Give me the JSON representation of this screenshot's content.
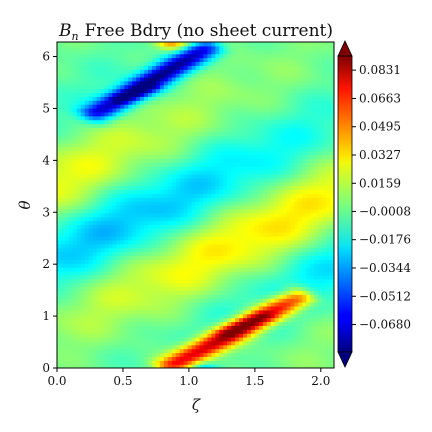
{
  "chart_data": {
    "type": "heatmap",
    "title": "Free Bdry (no sheet current)",
    "title_symbol": "B",
    "title_symbol_sub": "n",
    "xlabel": "ζ",
    "ylabel": "θ",
    "xlim": [
      0,
      2.1
    ],
    "ylim": [
      0,
      6.28
    ],
    "x_ticks": [
      "0.0",
      "0.5",
      "1.0",
      "1.5",
      "2.0"
    ],
    "x_tick_values": [
      0.0,
      0.5,
      1.0,
      1.5,
      2.0
    ],
    "y_ticks": [
      "0",
      "1",
      "2",
      "3",
      "4",
      "5",
      "6"
    ],
    "y_tick_values": [
      0,
      1,
      2,
      3,
      4,
      5,
      6
    ],
    "colormap": "jet",
    "colorbar_ticks": [
      "0.0831",
      "0.0663",
      "0.0495",
      "0.0327",
      "0.0159",
      "−0.0008",
      "−0.0176",
      "−0.0344",
      "−0.0512",
      "−0.0680"
    ],
    "colorbar_tick_values": [
      0.0831,
      0.0663,
      0.0495,
      0.0327,
      0.0159,
      -0.0008,
      -0.0176,
      -0.0344,
      -0.0512,
      -0.068
    ],
    "colorbar_range": [
      -0.0843,
      0.0915
    ],
    "colorbar_extend": "both",
    "features": [
      {
        "kind": "negative_band",
        "zeta": [
          0.3,
          1.2
        ],
        "theta": [
          4.9,
          6.2
        ],
        "peak": -0.084
      },
      {
        "kind": "positive_band",
        "zeta": [
          0.85,
          1.85
        ],
        "theta": [
          0.05,
          1.35
        ],
        "peak": 0.092
      },
      {
        "kind": "weak_positive_stripe",
        "zeta": [
          0.0,
          2.1
        ],
        "theta": [
          2.0,
          4.6
        ],
        "peak": 0.02
      },
      {
        "kind": "weak_negative_stripe",
        "zeta": [
          0.0,
          2.1
        ],
        "theta": [
          1.3,
          3.6
        ],
        "peak": -0.015
      }
    ]
  }
}
